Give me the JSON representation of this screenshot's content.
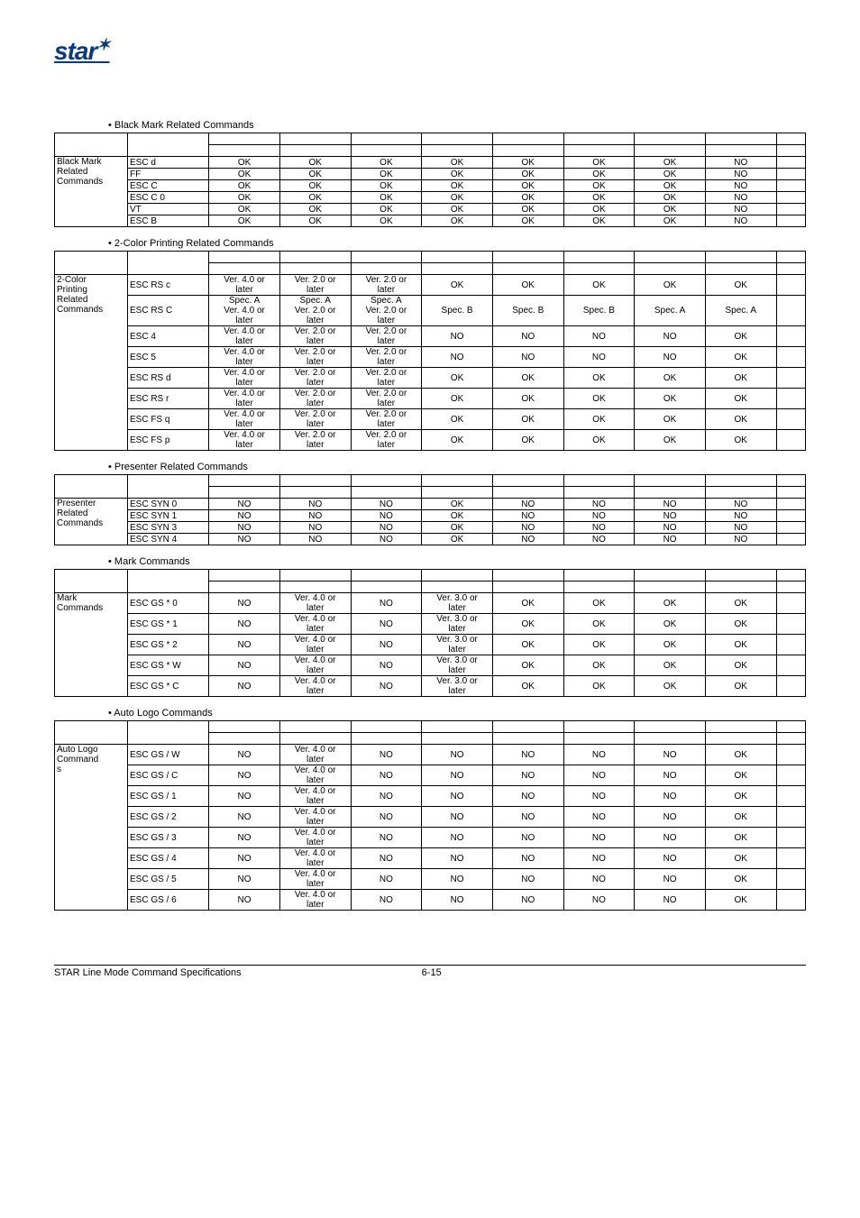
{
  "logo": {
    "text": "star",
    "tail": "✶"
  },
  "footer": {
    "left": "STAR Line Mode Command Specifications",
    "right": "6-15"
  },
  "sections": [
    {
      "title": "• Black Mark Related Commands",
      "group": "Black Mark Related Commands",
      "groupLines": [
        "Black Mark",
        "Related",
        "Commands"
      ],
      "rows": [
        {
          "cmd": "ESC d",
          "cells": [
            "OK",
            "OK",
            "OK",
            "OK",
            "OK",
            "OK",
            "OK",
            "NO",
            ""
          ]
        },
        {
          "cmd": "FF",
          "cells": [
            "OK",
            "OK",
            "OK",
            "OK",
            "OK",
            "OK",
            "OK",
            "NO",
            ""
          ]
        },
        {
          "cmd": "ESC C",
          "cells": [
            "OK",
            "OK",
            "OK",
            "OK",
            "OK",
            "OK",
            "OK",
            "NO",
            ""
          ]
        },
        {
          "cmd": "ESC C 0",
          "cells": [
            "OK",
            "OK",
            "OK",
            "OK",
            "OK",
            "OK",
            "OK",
            "NO",
            ""
          ]
        },
        {
          "cmd": "VT",
          "cells": [
            "OK",
            "OK",
            "OK",
            "OK",
            "OK",
            "OK",
            "OK",
            "NO",
            ""
          ]
        },
        {
          "cmd": "ESC B",
          "cells": [
            "OK",
            "OK",
            "OK",
            "OK",
            "OK",
            "OK",
            "OK",
            "NO",
            ""
          ]
        }
      ]
    },
    {
      "title": "• 2-Color Printing Related Commands",
      "group": "2-Color Printing Related Commands",
      "groupLines": [
        "2-Color",
        "Printing",
        "Related",
        "Commands"
      ],
      "rows": [
        {
          "cmd": "ESC RS c",
          "cells": [
            "Ver. 4.0 or later",
            "Ver. 2.0 or later",
            "Ver. 2.0 or later",
            "OK",
            "OK",
            "OK",
            "OK",
            "OK",
            ""
          ]
        },
        {
          "cmd": "ESC RS C",
          "cells": [
            "Spec. A Ver. 4.0 or later",
            "Spec. A Ver. 2.0 or later",
            "Spec. A Ver. 2.0 or later",
            "Spec. B",
            "Spec. B",
            "Spec. B",
            "Spec. A",
            "Spec. A",
            ""
          ]
        },
        {
          "cmd": "ESC 4",
          "cells": [
            "Ver. 4.0 or later",
            "Ver. 2.0 or later",
            "Ver. 2.0 or later",
            "NO",
            "NO",
            "NO",
            "NO",
            "OK",
            ""
          ]
        },
        {
          "cmd": "ESC 5",
          "cells": [
            "Ver. 4.0 or later",
            "Ver. 2.0 or later",
            "Ver. 2.0 or later",
            "NO",
            "NO",
            "NO",
            "NO",
            "OK",
            ""
          ]
        },
        {
          "cmd": "ESC RS d",
          "cells": [
            "Ver. 4.0 or later",
            "Ver. 2.0 or later",
            "Ver. 2.0 or later",
            "OK",
            "OK",
            "OK",
            "OK",
            "OK",
            ""
          ]
        },
        {
          "cmd": "ESC RS r",
          "cells": [
            "Ver. 4.0 or later",
            "Ver. 2.0 or later",
            "Ver. 2.0 or later",
            "OK",
            "OK",
            "OK",
            "OK",
            "OK",
            ""
          ]
        },
        {
          "cmd": "ESC FS q",
          "cells": [
            "Ver. 4.0 or later",
            "Ver. 2.0 or later",
            "Ver. 2.0 or later",
            "OK",
            "OK",
            "OK",
            "OK",
            "OK",
            ""
          ]
        },
        {
          "cmd": "ESC FS p",
          "cells": [
            "Ver. 4.0 or later",
            "Ver. 2.0 or later",
            "Ver. 2.0 or later",
            "OK",
            "OK",
            "OK",
            "OK",
            "OK",
            ""
          ]
        }
      ]
    },
    {
      "title": "• Presenter Related Commands",
      "group": "Presenter Related Commands",
      "groupLines": [
        "Presenter",
        "Related",
        "Commands"
      ],
      "rows": [
        {
          "cmd": "ESC SYN 0",
          "cells": [
            "NO",
            "NO",
            "NO",
            "OK",
            "NO",
            "NO",
            "NO",
            "NO",
            ""
          ]
        },
        {
          "cmd": "ESC SYN 1",
          "cells": [
            "NO",
            "NO",
            "NO",
            "OK",
            "NO",
            "NO",
            "NO",
            "NO",
            ""
          ]
        },
        {
          "cmd": "ESC SYN 3",
          "cells": [
            "NO",
            "NO",
            "NO",
            "OK",
            "NO",
            "NO",
            "NO",
            "NO",
            ""
          ]
        },
        {
          "cmd": "ESC SYN 4",
          "cells": [
            "NO",
            "NO",
            "NO",
            "OK",
            "NO",
            "NO",
            "NO",
            "NO",
            ""
          ]
        }
      ]
    },
    {
      "title": "• Mark Commands",
      "group": "Mark Commands",
      "groupLines": [
        "Mark",
        "Commands"
      ],
      "rows": [
        {
          "cmd": "ESC GS * 0",
          "cells": [
            "NO",
            "Ver. 4.0 or later",
            "NO",
            "Ver. 3.0 or later",
            "OK",
            "OK",
            "OK",
            "OK",
            ""
          ]
        },
        {
          "cmd": "ESC GS * 1",
          "cells": [
            "NO",
            "Ver. 4.0 or later",
            "NO",
            "Ver. 3.0 or later",
            "OK",
            "OK",
            "OK",
            "OK",
            ""
          ]
        },
        {
          "cmd": "ESC GS * 2",
          "cells": [
            "NO",
            "Ver. 4.0 or later",
            "NO",
            "Ver. 3.0 or later",
            "OK",
            "OK",
            "OK",
            "OK",
            ""
          ]
        },
        {
          "cmd": "ESC GS * W",
          "cells": [
            "NO",
            "Ver. 4.0 or later",
            "NO",
            "Ver. 3.0 or later",
            "OK",
            "OK",
            "OK",
            "OK",
            ""
          ]
        },
        {
          "cmd": "ESC GS * C",
          "cells": [
            "NO",
            "Ver. 4.0 or later",
            "NO",
            "Ver. 3.0 or later",
            "OK",
            "OK",
            "OK",
            "OK",
            ""
          ]
        }
      ]
    },
    {
      "title": "• Auto Logo Commands",
      "group": "Auto Logo Commands",
      "groupLines": [
        "Auto Logo",
        "Command",
        "s"
      ],
      "rows": [
        {
          "cmd": "ESC GS / W",
          "cells": [
            "NO",
            "Ver. 4.0 or later",
            "NO",
            "NO",
            "NO",
            "NO",
            "NO",
            "OK",
            ""
          ]
        },
        {
          "cmd": "ESC GS / C",
          "cells": [
            "NO",
            "Ver. 4.0 or later",
            "NO",
            "NO",
            "NO",
            "NO",
            "NO",
            "OK",
            ""
          ]
        },
        {
          "cmd": "ESC GS / 1",
          "cells": [
            "NO",
            "Ver. 4.0 or later",
            "NO",
            "NO",
            "NO",
            "NO",
            "NO",
            "OK",
            ""
          ]
        },
        {
          "cmd": "ESC GS / 2",
          "cells": [
            "NO",
            "Ver. 4.0 or later",
            "NO",
            "NO",
            "NO",
            "NO",
            "NO",
            "OK",
            ""
          ]
        },
        {
          "cmd": "ESC GS / 3",
          "cells": [
            "NO",
            "Ver. 4.0 or later",
            "NO",
            "NO",
            "NO",
            "NO",
            "NO",
            "OK",
            ""
          ]
        },
        {
          "cmd": "ESC GS / 4",
          "cells": [
            "NO",
            "Ver. 4.0 or later",
            "NO",
            "NO",
            "NO",
            "NO",
            "NO",
            "OK",
            ""
          ]
        },
        {
          "cmd": "ESC GS / 5",
          "cells": [
            "NO",
            "Ver. 4.0 or later",
            "NO",
            "NO",
            "NO",
            "NO",
            "NO",
            "OK",
            ""
          ]
        },
        {
          "cmd": "ESC GS / 6",
          "cells": [
            "NO",
            "Ver. 4.0 or later",
            "NO",
            "NO",
            "NO",
            "NO",
            "NO",
            "OK",
            ""
          ]
        }
      ]
    }
  ]
}
